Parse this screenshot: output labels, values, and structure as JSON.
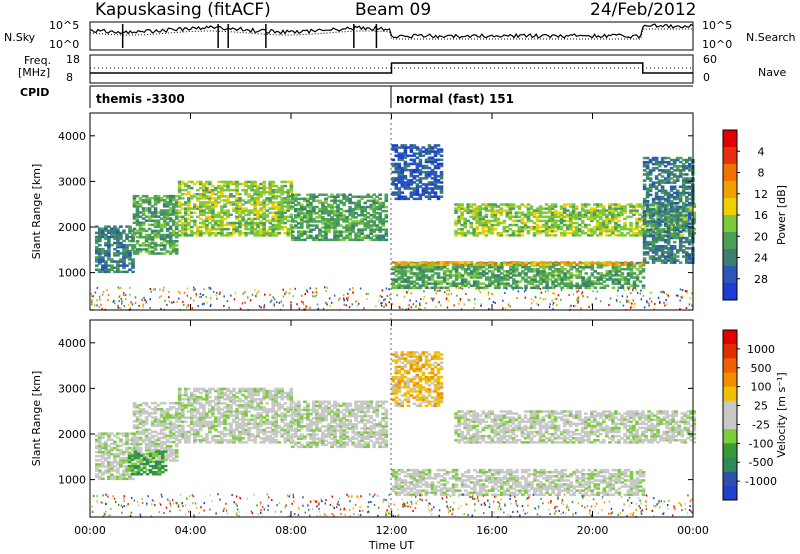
{
  "header": {
    "station": "Kapuskasing (fitACF)",
    "beam": "Beam 09",
    "date": "24/Feb/2012"
  },
  "top_labels": {
    "nsky": "N.Sky",
    "nsearch": "N.Search",
    "freq_line1": "Freq.",
    "freq_line2": "[MHz]",
    "cpid": "CPID",
    "nave": "Nave",
    "noise_ticks_left": [
      "10^5",
      "10^0"
    ],
    "noise_ticks_right": [
      "10^5",
      "10^0"
    ],
    "freq_ticks": [
      "18",
      "8"
    ],
    "nave_ticks": [
      "60",
      "0"
    ]
  },
  "modes": [
    {
      "label": "themis -3300"
    },
    {
      "label": "normal (fast) 151"
    }
  ],
  "colors": {
    "noise_sky": "#000000",
    "noise_search": "#000000"
  },
  "chart_data": [
    {
      "type": "heatmap",
      "name": "power",
      "ylabel": "Slant Range [km]",
      "ylim": [
        180,
        4500
      ],
      "yticks": [
        "1000",
        "2000",
        "3000",
        "4000"
      ],
      "xlim_hours": [
        0,
        24
      ],
      "colorbar": {
        "label": "Power [dB]",
        "ticks": [
          "4",
          "8",
          "12",
          "16",
          "20",
          "24",
          "28"
        ],
        "colors": [
          "#1c3cd8",
          "#2b58b8",
          "#3b7f70",
          "#4aa05a",
          "#7dc83b",
          "#f0d000",
          "#f0a000",
          "#f07000",
          "#e83010",
          "#e00000"
        ]
      },
      "regions": [
        {
          "t0": 0.2,
          "t1": 1.7,
          "r0": 1000,
          "r1": 2000,
          "level": 2
        },
        {
          "t0": 1.7,
          "t1": 3.5,
          "r0": 1400,
          "r1": 2700,
          "level": 3
        },
        {
          "t0": 3.5,
          "t1": 8.0,
          "r0": 1800,
          "r1": 3000,
          "level": 4
        },
        {
          "t0": 8.0,
          "t1": 11.8,
          "r0": 1700,
          "r1": 2700,
          "level": 3
        },
        {
          "t0": 12.0,
          "t1": 22.0,
          "r0": 650,
          "r1": 1200,
          "level": 3
        },
        {
          "t0": 12.0,
          "t1": 22.0,
          "r0": 1160,
          "r1": 1220,
          "level": 6
        },
        {
          "t0": 14.5,
          "t1": 24.0,
          "r0": 1800,
          "r1": 2500,
          "level": 4
        },
        {
          "t0": 12.0,
          "t1": 14.0,
          "r0": 2600,
          "r1": 3800,
          "level": 1
        },
        {
          "t0": 22.0,
          "t1": 24.0,
          "r0": 1200,
          "r1": 3500,
          "level": 2
        }
      ]
    },
    {
      "type": "heatmap",
      "name": "velocity",
      "ylabel": "Slant Range [km]",
      "xlabel": "Time UT",
      "ylim": [
        180,
        4500
      ],
      "yticks": [
        "1000",
        "2000",
        "3000",
        "4000"
      ],
      "xticks": [
        "00:00",
        "04:00",
        "08:00",
        "12:00",
        "16:00",
        "20:00",
        "00:00"
      ],
      "xlim_hours": [
        0,
        24
      ],
      "colorbar": {
        "label": "Velocity [m s⁻¹]",
        "ticks": [
          "1000",
          "500",
          "100",
          "25",
          "-25",
          "-100",
          "-500",
          "-1000"
        ],
        "colors": [
          "#2040c8",
          "#3050b0",
          "#2e8b57",
          "#3a9a3a",
          "#7ccd3c",
          "#c8c8c8",
          "#c8c8c8",
          "#f0c000",
          "#f09000",
          "#f06000",
          "#e03000",
          "#e00000"
        ]
      },
      "regions": [
        {
          "t0": 0.2,
          "t1": 1.7,
          "r0": 1000,
          "r1": 2000,
          "level": 5
        },
        {
          "t0": 1.7,
          "t1": 3.5,
          "r0": 1400,
          "r1": 2700,
          "level": 5
        },
        {
          "t0": 3.5,
          "t1": 8.0,
          "r0": 1800,
          "r1": 3000,
          "level": 5
        },
        {
          "t0": 8.0,
          "t1": 11.8,
          "r0": 1700,
          "r1": 2700,
          "level": 5
        },
        {
          "t0": 12.0,
          "t1": 22.0,
          "r0": 650,
          "r1": 1200,
          "level": 5
        },
        {
          "t0": 14.5,
          "t1": 24.0,
          "r0": 1800,
          "r1": 2500,
          "level": 5
        },
        {
          "t0": 12.0,
          "t1": 14.0,
          "r0": 2600,
          "r1": 3800,
          "level": 7
        },
        {
          "t0": 1.5,
          "t1": 3.0,
          "r0": 1100,
          "r1": 1600,
          "level": 3
        }
      ]
    }
  ]
}
